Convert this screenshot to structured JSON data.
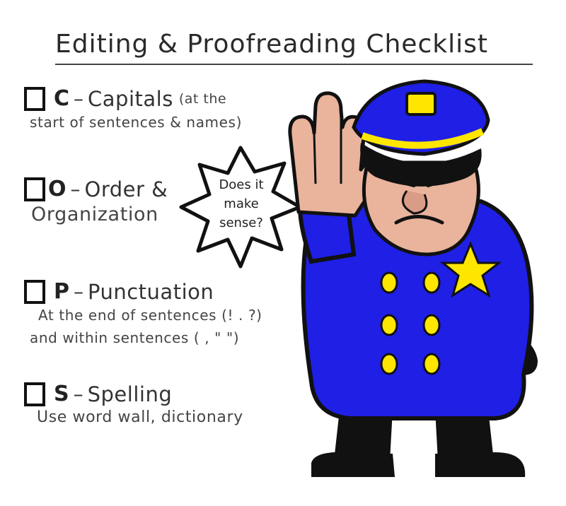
{
  "title": "Editing & Proofreading Checklist",
  "items": [
    {
      "letter": "C",
      "dash": "–",
      "word": "Capitals",
      "note": "(at the",
      "details": [
        "start of sentences & names)"
      ]
    },
    {
      "letter": "O",
      "dash": "–",
      "word": "Order &",
      "note": "",
      "details": [
        "Organization"
      ]
    },
    {
      "letter": "P",
      "dash": "–",
      "word": "Punctuation",
      "note": "",
      "details": [
        "At the end of sentences (! . ?)",
        "and within sentences ( , \" \")"
      ]
    },
    {
      "letter": "S",
      "dash": "–",
      "word": "Spelling",
      "note": "",
      "details": [
        "Use word wall, dictionary"
      ]
    }
  ],
  "speech_bubble": {
    "lines": [
      "Does it",
      "make",
      "sense?"
    ]
  },
  "colors": {
    "uniform": "#1f1fe6",
    "badge": "#ffe600",
    "skin": "#e9b39c",
    "ink": "#111111"
  },
  "icons": {
    "checkbox": "checkbox-icon",
    "officer": "police-officer-icon",
    "badge": "star-badge-icon"
  }
}
